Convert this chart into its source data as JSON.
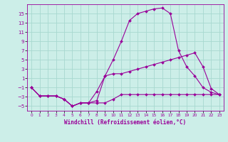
{
  "xlabel": "Windchill (Refroidissement éolien,°C)",
  "bg_color": "#cceee8",
  "grid_color": "#a8d8d0",
  "line_color": "#990099",
  "x_values": [
    0,
    1,
    2,
    3,
    4,
    5,
    6,
    7,
    8,
    9,
    10,
    11,
    12,
    13,
    14,
    15,
    16,
    17,
    18,
    19,
    20,
    21,
    22,
    23
  ],
  "line1": [
    -1.0,
    -2.8,
    -2.8,
    -2.8,
    -3.5,
    -5.0,
    -4.3,
    -4.3,
    -4.3,
    -4.3,
    -3.5,
    -2.5,
    -2.5,
    -2.5,
    -2.5,
    -2.5,
    -2.5,
    -2.5,
    -2.5,
    -2.5,
    -2.5,
    -2.5,
    -2.5,
    -2.5
  ],
  "line2": [
    -1.0,
    -2.8,
    -2.8,
    -2.8,
    -3.5,
    -5.0,
    -4.3,
    -4.3,
    -3.8,
    1.5,
    2.0,
    2.0,
    2.5,
    3.0,
    3.5,
    4.0,
    4.5,
    5.0,
    5.5,
    6.0,
    6.5,
    3.5,
    -1.2,
    -2.5
  ],
  "line3": [
    -1.0,
    -2.8,
    -2.8,
    -2.8,
    -3.5,
    -5.0,
    -4.3,
    -4.3,
    -1.8,
    1.5,
    5.0,
    9.0,
    13.5,
    15.0,
    15.5,
    16.0,
    16.2,
    15.0,
    7.0,
    3.5,
    1.5,
    -1.0,
    -2.0,
    -2.5
  ],
  "ylim": [
    -6,
    17
  ],
  "yticks": [
    -5,
    -3,
    -1,
    1,
    3,
    5,
    7,
    9,
    11,
    13,
    15
  ],
  "xlim": [
    -0.5,
    23.5
  ],
  "xticks": [
    0,
    1,
    2,
    3,
    4,
    5,
    6,
    7,
    8,
    9,
    10,
    11,
    12,
    13,
    14,
    15,
    16,
    17,
    18,
    19,
    20,
    21,
    22,
    23
  ]
}
